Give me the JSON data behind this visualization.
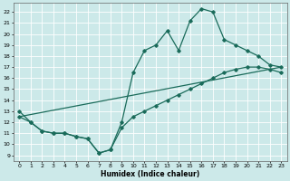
{
  "title": "",
  "xlabel": "Humidex (Indice chaleur)",
  "xlim": [
    -0.5,
    23.5
  ],
  "ylim": [
    8.5,
    22.8
  ],
  "yticks": [
    9,
    10,
    11,
    12,
    13,
    14,
    15,
    16,
    17,
    18,
    19,
    20,
    21,
    22
  ],
  "xticks": [
    0,
    1,
    2,
    3,
    4,
    5,
    6,
    7,
    8,
    9,
    10,
    11,
    12,
    13,
    14,
    15,
    16,
    17,
    18,
    19,
    20,
    21,
    22,
    23
  ],
  "bg_color": "#cce9e9",
  "grid_color": "#ffffff",
  "line_color": "#1a6b5a",
  "line_width": 0.9,
  "marker": "D",
  "marker_size": 1.8,
  "curve1_x": [
    0,
    1,
    2,
    3,
    4,
    5,
    6,
    7,
    8,
    9,
    10,
    11,
    12,
    13,
    14,
    15,
    16,
    17,
    18,
    19,
    20,
    21,
    22,
    23
  ],
  "curve1_y": [
    13,
    12,
    11.2,
    11,
    11,
    10.7,
    10.5,
    9.2,
    9.5,
    12,
    16.5,
    18.5,
    19,
    20.3,
    18.5,
    21.2,
    22.3,
    22,
    19.5,
    19,
    18.5,
    18,
    17.2,
    17
  ],
  "curve2_x": [
    0,
    23
  ],
  "curve2_y": [
    12.5,
    17
  ],
  "curve3_x": [
    0,
    1,
    2,
    3,
    4,
    5,
    6,
    7,
    8,
    9,
    10,
    11,
    12,
    13,
    14,
    15,
    16,
    17,
    18,
    19,
    20,
    21,
    22,
    23
  ],
  "curve3_y": [
    12.5,
    12,
    11.2,
    11,
    11,
    10.7,
    10.5,
    9.2,
    9.5,
    11.5,
    12.5,
    13,
    13.5,
    14,
    14.5,
    15,
    15.5,
    16,
    16.5,
    16.8,
    17,
    17,
    16.8,
    16.5
  ]
}
